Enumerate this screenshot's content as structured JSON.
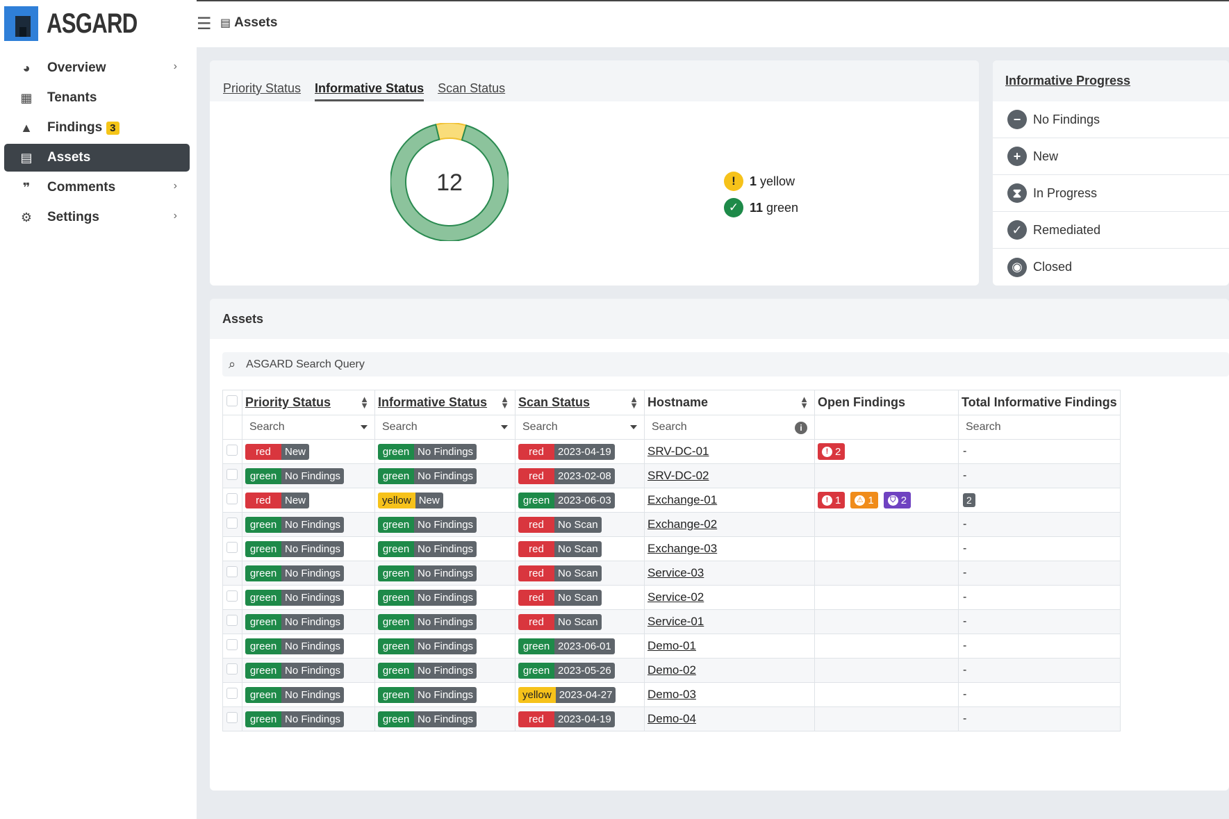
{
  "app": {
    "brand": "ASGARD"
  },
  "sidebar": {
    "items": [
      {
        "label": "Overview",
        "icon": "palette-icon",
        "chevron": true,
        "active": false
      },
      {
        "label": "Tenants",
        "icon": "building-icon",
        "chevron": false,
        "active": false
      },
      {
        "label": "Findings",
        "icon": "warning-icon",
        "chevron": false,
        "active": false,
        "badge": "3"
      },
      {
        "label": "Assets",
        "icon": "server-icon",
        "chevron": false,
        "active": true
      },
      {
        "label": "Comments",
        "icon": "comments-icon",
        "chevron": true,
        "active": false
      },
      {
        "label": "Settings",
        "icon": "gears-icon",
        "chevron": true,
        "active": false
      }
    ]
  },
  "topbar": {
    "title": "Assets"
  },
  "status_card": {
    "tabs": [
      {
        "label": "Priority Status",
        "active": false
      },
      {
        "label": "Informative Status",
        "active": true
      },
      {
        "label": "Scan Status",
        "active": false
      }
    ],
    "total": "12",
    "legend": [
      {
        "count": "1",
        "label": "yellow",
        "color": "#f6c21a",
        "symbol": "!"
      },
      {
        "count": "11",
        "label": "green",
        "color": "#1e8a49",
        "symbol": "✓"
      }
    ]
  },
  "chart_data": {
    "type": "pie",
    "categories": [
      "yellow",
      "green"
    ],
    "values": [
      1,
      11
    ],
    "colors": [
      "#f9dd7a",
      "#8cc39c"
    ],
    "center_label": "12"
  },
  "progress_card": {
    "title": "Informative Progress",
    "items": [
      {
        "label": "No Findings",
        "icon": "minus-circle-icon",
        "symbol": "−"
      },
      {
        "label": "New",
        "icon": "plus-circle-icon",
        "symbol": "+"
      },
      {
        "label": "In Progress",
        "icon": "hourglass-icon",
        "symbol": "⧗"
      },
      {
        "label": "Remediated",
        "icon": "check-circle-icon",
        "symbol": "✓"
      },
      {
        "label": "Closed",
        "icon": "eye-slash-icon",
        "symbol": "◉"
      }
    ]
  },
  "assets_card": {
    "title": "Assets",
    "search_placeholder": "ASGARD Search Query",
    "columns": [
      "Priority Status",
      "Informative Status",
      "Scan Status",
      "Hostname",
      "Open Findings",
      "Total Informative Findings"
    ],
    "filter_placeholder": "Search",
    "rows": [
      {
        "priority": [
          "red",
          "New"
        ],
        "informative": [
          "green",
          "No Findings"
        ],
        "scan": [
          "red",
          "2023-04-19"
        ],
        "hostname": "SRV-DC-01",
        "findings": [
          {
            "type": "red",
            "icon": "!",
            "count": "2"
          }
        ],
        "total": "-"
      },
      {
        "priority": [
          "green",
          "No Findings"
        ],
        "informative": [
          "green",
          "No Findings"
        ],
        "scan": [
          "red",
          "2023-02-08"
        ],
        "hostname": "SRV-DC-02",
        "findings": [],
        "total": "-"
      },
      {
        "priority": [
          "red",
          "New"
        ],
        "informative": [
          "yellow",
          "New"
        ],
        "scan": [
          "green",
          "2023-06-03"
        ],
        "hostname": "Exchange-01",
        "findings": [
          {
            "type": "red",
            "icon": "!",
            "count": "1"
          },
          {
            "type": "orange",
            "icon": "⚠",
            "count": "1"
          },
          {
            "type": "purple",
            "icon": "⛉",
            "count": "2"
          }
        ],
        "total": "2"
      },
      {
        "priority": [
          "green",
          "No Findings"
        ],
        "informative": [
          "green",
          "No Findings"
        ],
        "scan": [
          "red",
          "No Scan"
        ],
        "hostname": "Exchange-02",
        "findings": [],
        "total": "-"
      },
      {
        "priority": [
          "green",
          "No Findings"
        ],
        "informative": [
          "green",
          "No Findings"
        ],
        "scan": [
          "red",
          "No Scan"
        ],
        "hostname": "Exchange-03",
        "findings": [],
        "total": "-"
      },
      {
        "priority": [
          "green",
          "No Findings"
        ],
        "informative": [
          "green",
          "No Findings"
        ],
        "scan": [
          "red",
          "No Scan"
        ],
        "hostname": "Service-03",
        "findings": [],
        "total": "-"
      },
      {
        "priority": [
          "green",
          "No Findings"
        ],
        "informative": [
          "green",
          "No Findings"
        ],
        "scan": [
          "red",
          "No Scan"
        ],
        "hostname": "Service-02",
        "findings": [],
        "total": "-"
      },
      {
        "priority": [
          "green",
          "No Findings"
        ],
        "informative": [
          "green",
          "No Findings"
        ],
        "scan": [
          "red",
          "No Scan"
        ],
        "hostname": "Service-01",
        "findings": [],
        "total": "-"
      },
      {
        "priority": [
          "green",
          "No Findings"
        ],
        "informative": [
          "green",
          "No Findings"
        ],
        "scan": [
          "green",
          "2023-06-01"
        ],
        "hostname": "Demo-01",
        "findings": [],
        "total": "-"
      },
      {
        "priority": [
          "green",
          "No Findings"
        ],
        "informative": [
          "green",
          "No Findings"
        ],
        "scan": [
          "green",
          "2023-05-26"
        ],
        "hostname": "Demo-02",
        "findings": [],
        "total": "-"
      },
      {
        "priority": [
          "green",
          "No Findings"
        ],
        "informative": [
          "green",
          "No Findings"
        ],
        "scan": [
          "yellow",
          "2023-04-27"
        ],
        "hostname": "Demo-03",
        "findings": [],
        "total": "-"
      },
      {
        "priority": [
          "green",
          "No Findings"
        ],
        "informative": [
          "green",
          "No Findings"
        ],
        "scan": [
          "red",
          "2023-04-19"
        ],
        "hostname": "Demo-04",
        "findings": [],
        "total": "-"
      }
    ]
  }
}
